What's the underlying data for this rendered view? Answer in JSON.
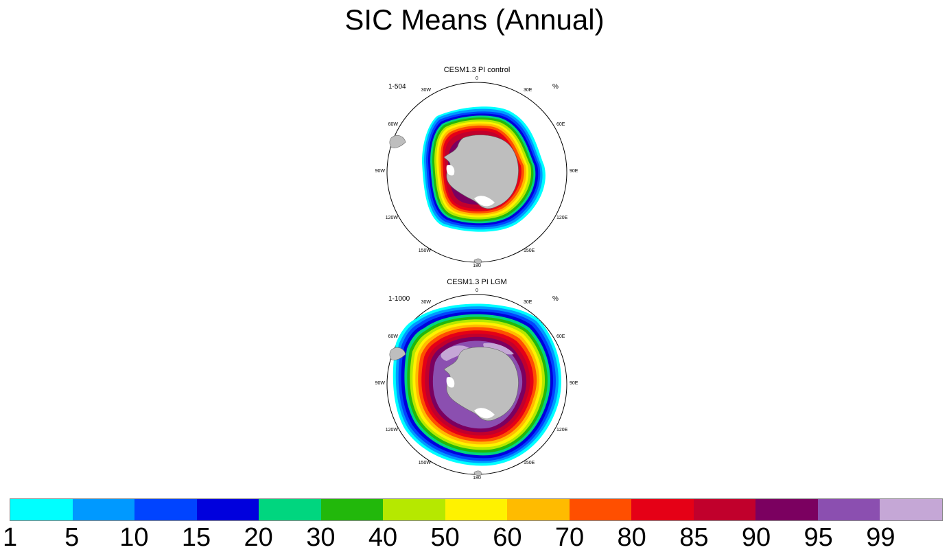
{
  "title": "SIC Means (Annual)",
  "panels": [
    {
      "title": "CESM1.3 PI control",
      "years": "1-504",
      "units": "%"
    },
    {
      "title": "CESM1.3 PI LGM",
      "years": "1-1000",
      "units": "%"
    }
  ],
  "longitude_labels": [
    "0",
    "30E",
    "60E",
    "90E",
    "120E",
    "150E",
    "180",
    "150W",
    "120W",
    "90W",
    "60W",
    "30W"
  ],
  "colorbar": {
    "levels": [
      "1",
      "5",
      "10",
      "15",
      "20",
      "30",
      "40",
      "50",
      "60",
      "70",
      "80",
      "85",
      "90",
      "95",
      "99"
    ],
    "colors": [
      "#00ffff",
      "#0099ff",
      "#0044ff",
      "#0000dd",
      "#00d67f",
      "#22b80b",
      "#b6e800",
      "#fff200",
      "#ffbb00",
      "#ff4f00",
      "#e50016",
      "#c1002c",
      "#7b0060",
      "#8b4fb0",
      "#c5a7d6"
    ]
  },
  "colors": {
    "land": "#bebebe",
    "ocean": "#ffffff"
  }
}
